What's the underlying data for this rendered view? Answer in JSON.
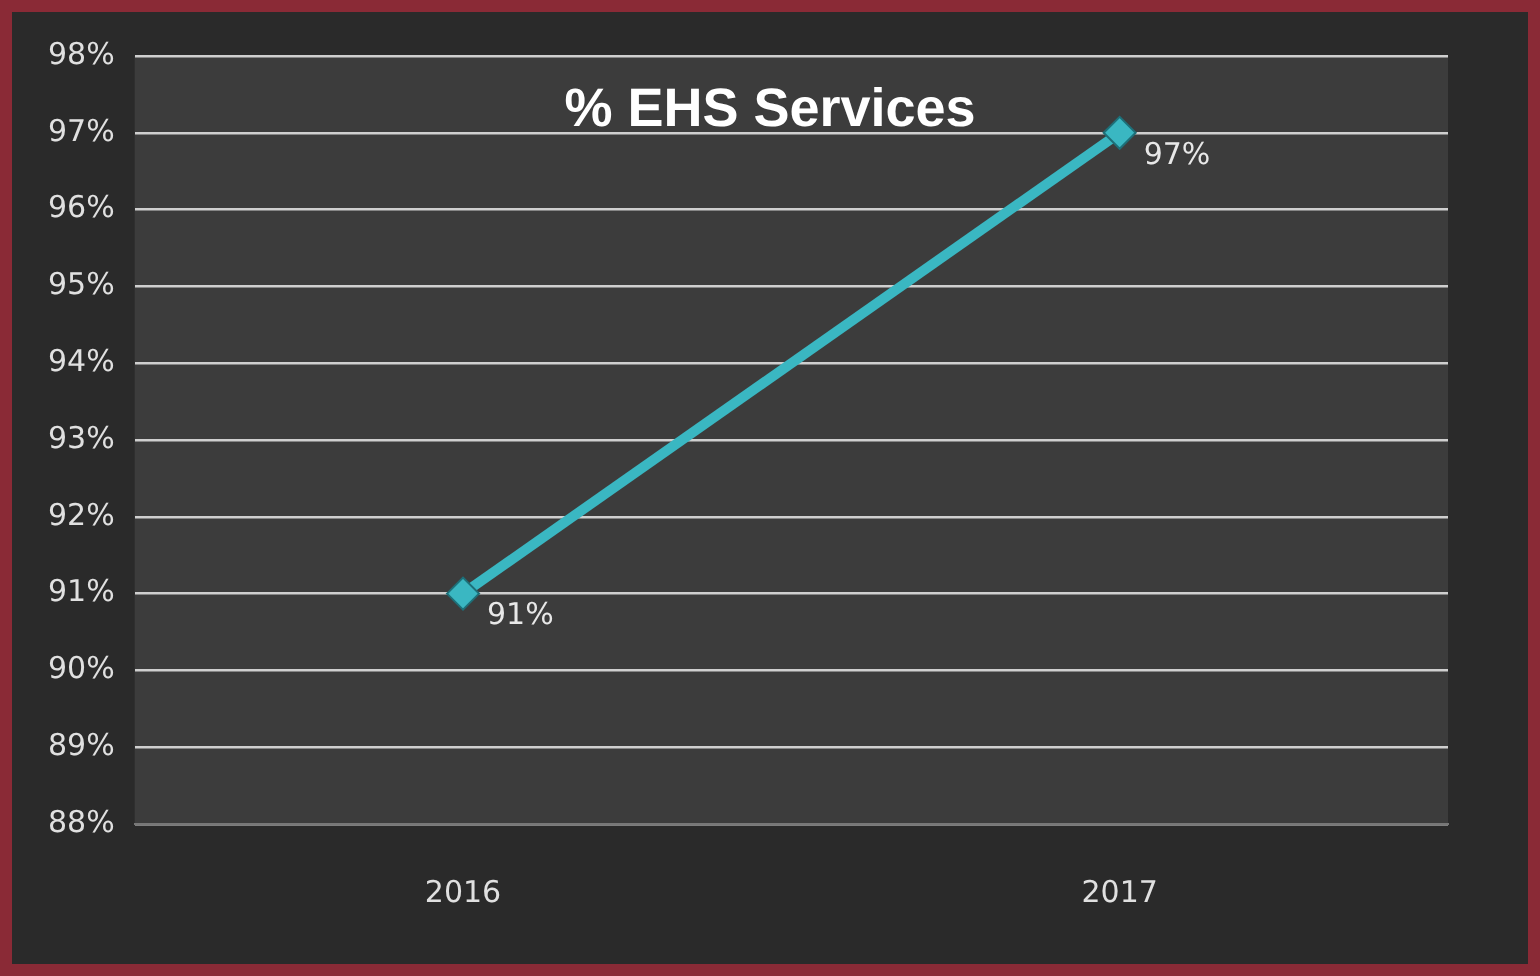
{
  "chart_data": {
    "type": "line",
    "title": "% EHS Services",
    "categories": [
      "2016",
      "2017"
    ],
    "series": [
      {
        "color": "#3ab7c2",
        "values": [
          91,
          97
        ],
        "value_labels": [
          "91%",
          "97%"
        ]
      }
    ],
    "ylim": [
      88,
      98
    ],
    "yticks": [
      {
        "value": 88,
        "label": "88%"
      },
      {
        "value": 89,
        "label": "89%"
      },
      {
        "value": 90,
        "label": "90%"
      },
      {
        "value": 91,
        "label": "91%"
      },
      {
        "value": 92,
        "label": "92%"
      },
      {
        "value": 93,
        "label": "93%"
      },
      {
        "value": 94,
        "label": "94%"
      },
      {
        "value": 95,
        "label": "95%"
      },
      {
        "value": 96,
        "label": "96%"
      },
      {
        "value": 97,
        "label": "97%"
      },
      {
        "value": 98,
        "label": "98%"
      }
    ],
    "grid": "y",
    "legend": false,
    "marker": "diamond",
    "line_style": "solid"
  }
}
